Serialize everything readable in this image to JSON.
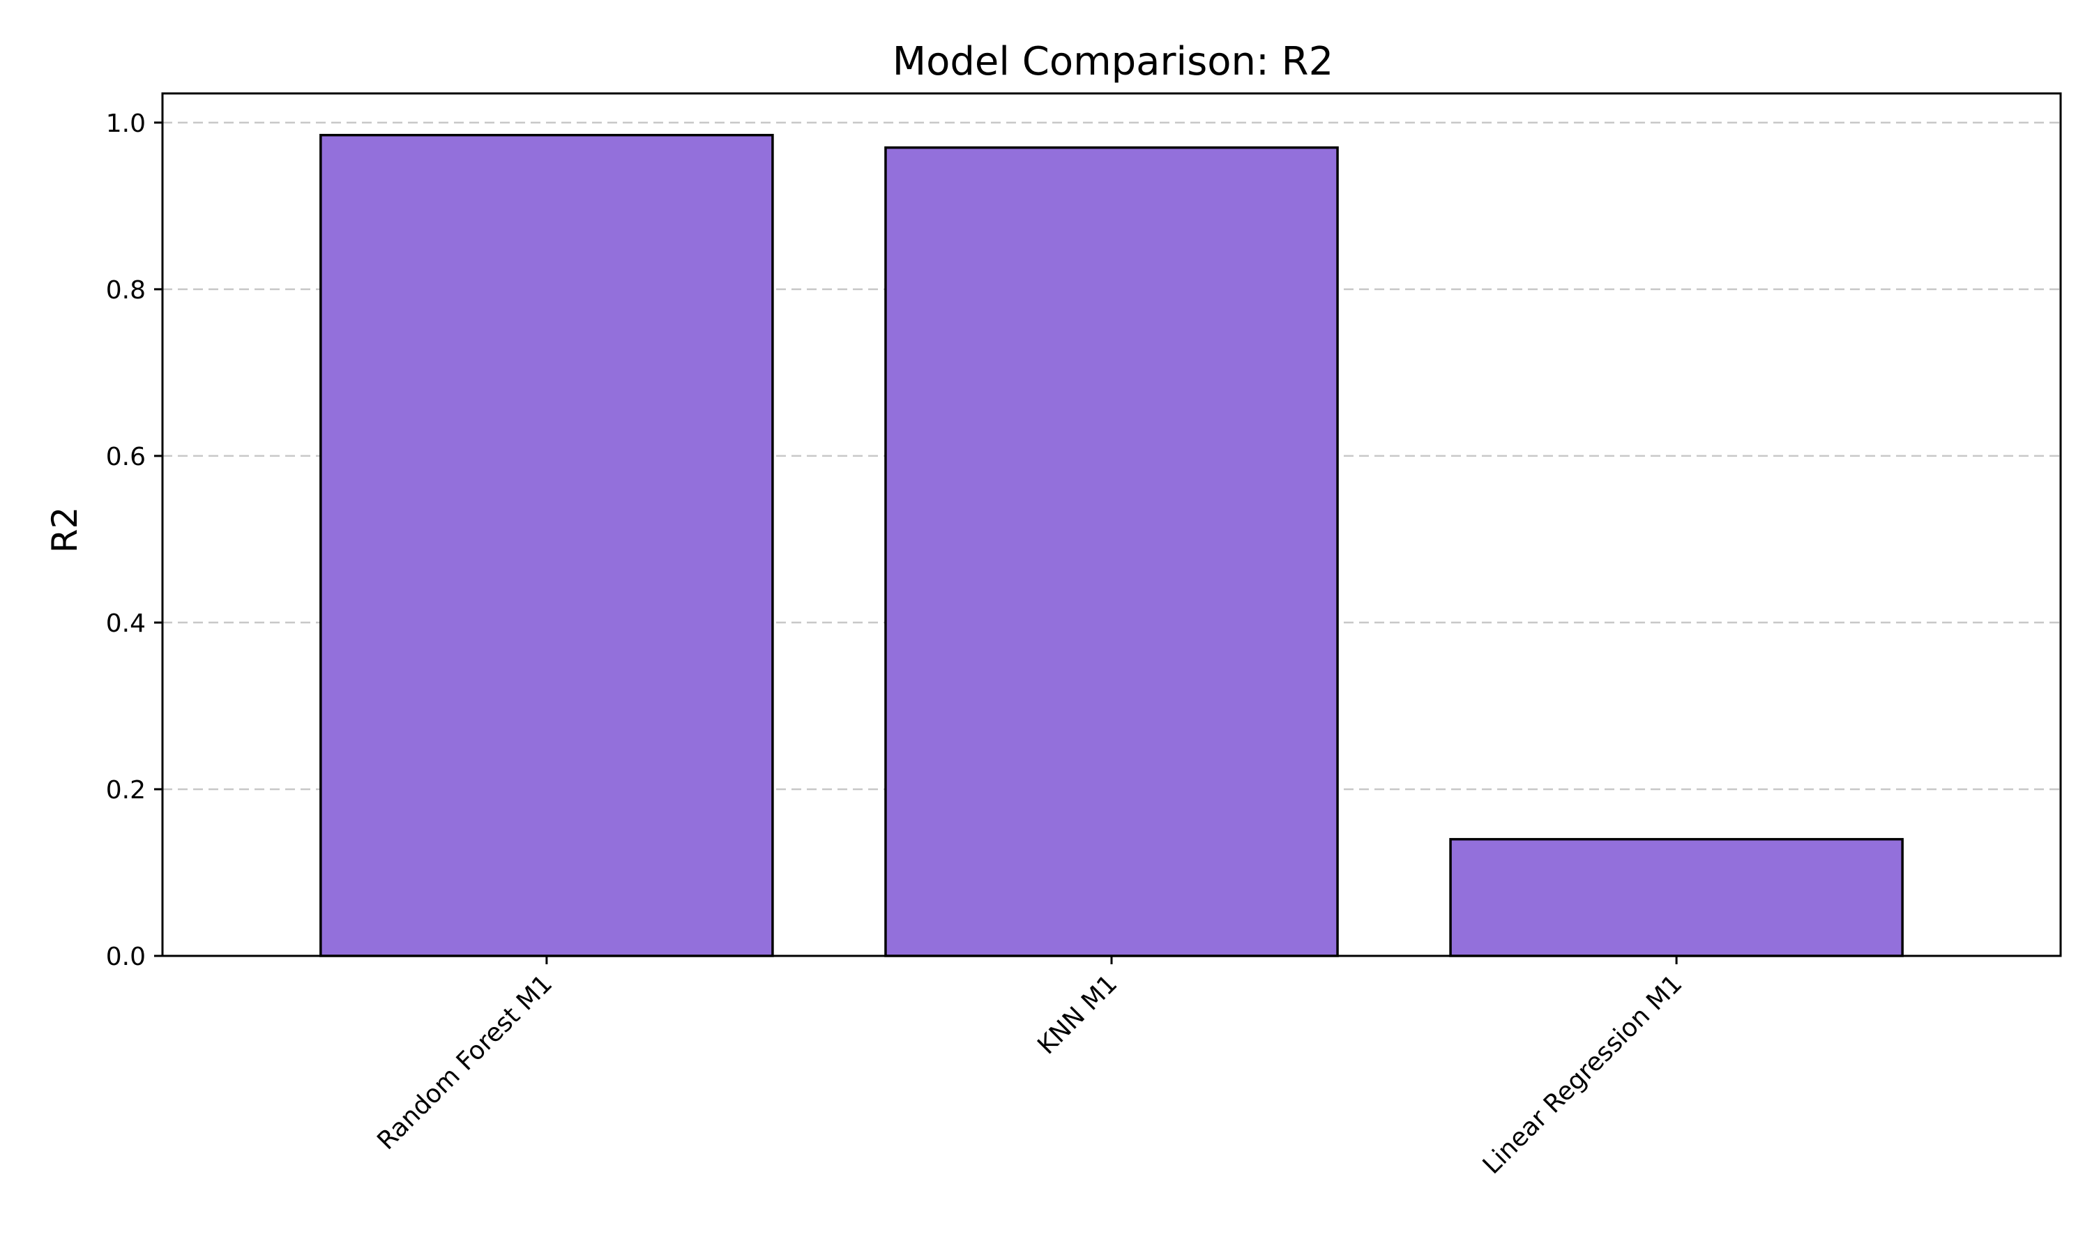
{
  "chart_data": {
    "type": "bar",
    "title": "Model Comparison: R2",
    "xlabel": "",
    "ylabel": "R2",
    "categories": [
      "Random Forest M1",
      "KNN M1",
      "Linear Regression M1"
    ],
    "values": [
      0.985,
      0.97,
      0.14
    ],
    "ylim": [
      0,
      1.035
    ],
    "yticks": [
      "0.0",
      "0.2",
      "0.4",
      "0.6",
      "0.8",
      "1.0"
    ],
    "grid": "y-dashed",
    "bar_color": "#9370db",
    "edge_color": "#000000",
    "grid_color": "#c8c8c8",
    "legend": "none"
  }
}
